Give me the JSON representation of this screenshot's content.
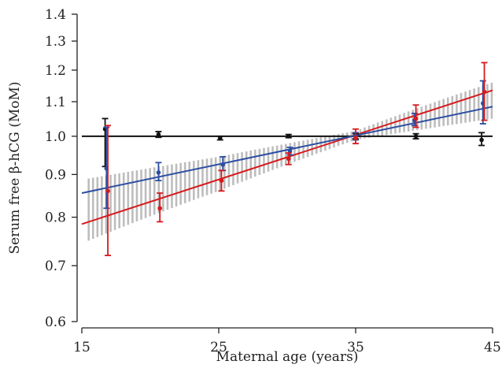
{
  "chart_data": {
    "type": "line",
    "title": "",
    "xlabel": "Maternal age (years)",
    "ylabel": "Serum free β-hCG (MoM)",
    "xlim": [
      15,
      45
    ],
    "ylim": [
      0.6,
      1.4
    ],
    "yscale": "log",
    "grid": false,
    "legend": "none",
    "x_ticks": [
      "15",
      "25",
      "35",
      "45"
    ],
    "x_tick_values": [
      15,
      25,
      35,
      45
    ],
    "y_ticks": [
      "0.6",
      "0.7",
      "0.8",
      "0.9",
      "1.0",
      "1.1",
      "1.2",
      "1.3",
      "1.4"
    ],
    "y_tick_values": [
      0.6,
      0.7,
      0.8,
      0.9,
      1.0,
      1.1,
      1.2,
      1.3,
      1.4
    ],
    "reference_line": {
      "y": 1.0,
      "color": "#111111"
    },
    "confidence_band": {
      "color": "#bdbdbd",
      "x": [
        15.5,
        25,
        35,
        45
      ],
      "lower": [
        0.75,
        0.86,
        0.99,
        1.05
      ],
      "upper": [
        0.89,
        0.945,
        1.015,
        1.16
      ]
    },
    "fit_lines": [
      {
        "color": "#d7191c",
        "x": [
          15,
          45
        ],
        "y": [
          0.785,
          1.135
        ]
      },
      {
        "color": "#2b4ea2",
        "x": [
          15,
          45
        ],
        "y": [
          0.855,
          1.085
        ]
      }
    ],
    "series": [
      {
        "color": "#111111",
        "x": [
          16.7,
          20.6,
          25.1,
          30.1,
          35,
          39.4,
          44.2
        ],
        "y": [
          1.02,
          1.005,
          0.995,
          1.0,
          1.0,
          1.0,
          0.99
        ],
        "err_low": [
          0.92,
          0.997,
          0.99,
          0.996,
          0.993,
          0.993,
          0.975
        ],
        "err_high": [
          1.05,
          1.013,
          1.0,
          1.005,
          1.007,
          1.007,
          1.01
        ]
      },
      {
        "color": "#2b4ea2",
        "x": [
          16.8,
          20.6,
          25.3,
          30.2,
          35,
          39.3,
          44.3
        ],
        "y": [
          0.915,
          0.905,
          0.925,
          0.96,
          1.0,
          1.045,
          1.095
        ],
        "err_low": [
          0.82,
          0.885,
          0.91,
          0.95,
          0.99,
          1.03,
          1.035
        ],
        "err_high": [
          1.025,
          0.93,
          0.945,
          0.97,
          1.01,
          1.065,
          1.165
        ]
      },
      {
        "color": "#d7191c",
        "x": [
          16.9,
          20.7,
          25.2,
          30.1,
          35,
          39.4,
          44.4
        ],
        "y": [
          0.86,
          0.82,
          0.885,
          0.94,
          0.995,
          1.05,
          1.13
        ],
        "err_low": [
          0.72,
          0.79,
          0.86,
          0.925,
          0.98,
          1.025,
          1.045
        ],
        "err_high": [
          1.03,
          0.855,
          0.91,
          0.955,
          1.02,
          1.09,
          1.225
        ]
      }
    ]
  }
}
